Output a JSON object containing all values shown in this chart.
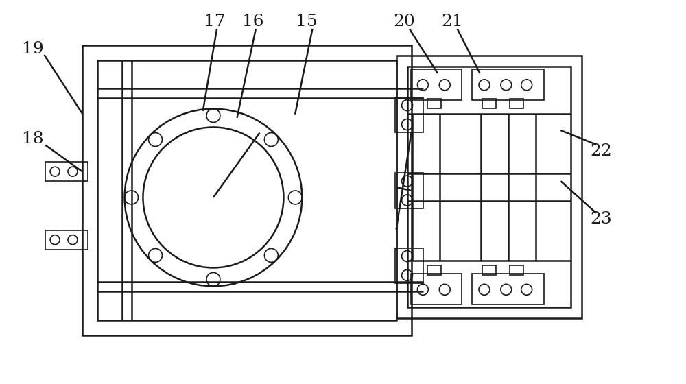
{
  "bg_color": "#ffffff",
  "line_color": "#1a1a1a",
  "lw_main": 1.8,
  "lw_thin": 1.2,
  "fig_width": 10.0,
  "fig_height": 5.6
}
